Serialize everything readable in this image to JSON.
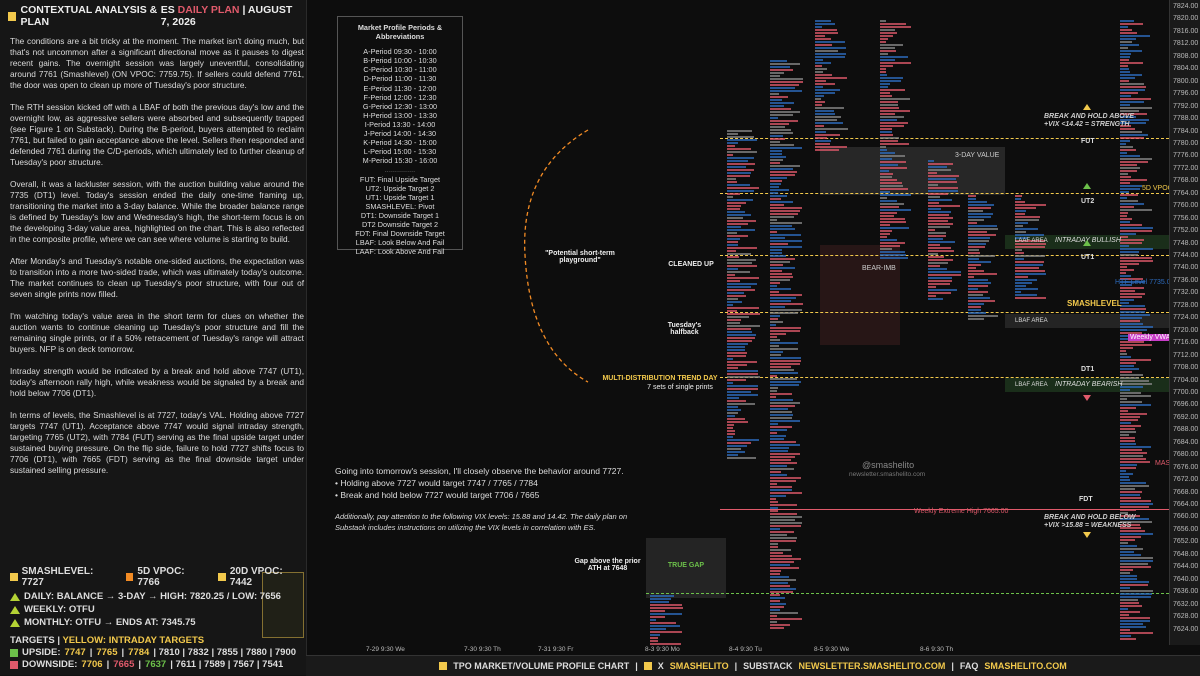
{
  "header": {
    "title": "CONTEXTUAL ANALYSIS & PLAN",
    "symbol": "ES",
    "plan": "DAILY PLAN",
    "date": "AUGUST 7, 2026"
  },
  "body": {
    "p1": "The conditions are a bit tricky at the moment. The market isn't doing much, but that's not uncommon after a significant directional move as it pauses to digest recent gains. The overnight session was largely uneventful, consolidating around 7761 (Smashlevel) (ON VPOC: 7759.75). If sellers could defend 7761, the door was open to clean up more of Tuesday's poor structure.",
    "p2": "The RTH session kicked off with a LBAF of both the previous day's low and the overnight low, as aggressive sellers were absorbed and subsequently trapped (see Figure 1 on Substack). During the B-period, buyers attempted to reclaim 7761, but failed to gain acceptance above the level. Sellers then responded and defended 7761 during the C/D-periods, which ultimately led to further cleanup of Tuesday's poor structure.",
    "p3": "Overall, it was a lackluster session, with the auction building value around the 7735 (DT1) level. Today's session ended the daily one-time framing up, transitioning the market into a 3-day balance. While the broader balance range is defined by Tuesday's low and Wednesday's high, the short-term focus is on the developing 3-day value area, highlighted on the chart. This is also reflected in the composite profile, where we can see where volume is starting to build.",
    "p4": "After Monday's and Tuesday's notable one-sided auctions, the expectation was to transition into a more two-sided trade, which was ultimately today's outcome. The market continues to clean up Tuesday's poor structure, with four out of seven single prints now filled.",
    "p5": "I'm watching today's value area in the short term for clues on whether the auction wants to continue cleaning up Tuesday's poor structure and fill the remaining single prints, or if a 50% retracement of Tuesday's range will attract buyers. NFP is on deck tomorrow.",
    "p6": "Intraday strength would be indicated by a break and hold above 7747 (UT1), today's afternoon rally high, while weakness would be signaled by a break and hold below 7706 (DT1).",
    "p7": "In terms of levels, the Smashlevel is at 7727, today's VAL. Holding above 7727 targets 7747 (UT1). Acceptance above 7747 would signal intraday strength, targeting 7765 (UT2), with 7784 (FUT) serving as the final upside target under sustained buying pressure. On the flip side, failure to hold 7727 shifts focus to 7706 (DT1), with 7665 (FDT) serving as the final downside target under sustained selling pressure."
  },
  "levels": {
    "smashlevel": "SMASHLEVEL: 7727",
    "vpoc5": "5D VPOC: 7766",
    "vpoc20": "20D VPOC: 7442"
  },
  "balance": {
    "daily": "DAILY: BALANCE → 3-DAY → HIGH: 7820.25 / LOW: 7656",
    "weekly": "WEEKLY: OTFU",
    "monthly": "MONTHLY: OTFU → ENDS AT: 7345.75"
  },
  "targets": {
    "title_a": "TARGETS",
    "title_b": "YELLOW: INTRADAY TARGETS",
    "upside_label": "UPSIDE:",
    "upside_a": "7747",
    "upside_b": "7765",
    "upside_c": "7784",
    "upside_rest": "| 7810 | 7832 | 7855 | 7880 | 7900",
    "downside_label": "DOWNSIDE:",
    "downside_a": "7706",
    "downside_b": "7665",
    "downside_c": "7637",
    "downside_rest": "| 7611 | 7589 | 7567 | 7541"
  },
  "legend": {
    "title": "Market Profile Periods & Abbreviations",
    "periods": [
      "A-Period 09:30 - 10:00",
      "B-Period 10:00 - 10:30",
      "C-Period 10:30 - 11:00",
      "D-Period 11:00 - 11:30",
      "E-Period 11:30 - 12:00",
      "F-Period 12:00 - 12:30",
      "G-Period 12:30 - 13:00",
      "H-Period 13:00 - 13:30",
      "I-Period 13:30 - 14:00",
      "J-Period 14:00 - 14:30",
      "K-Period 14:30 - 15:00",
      "L-Period 15:00 - 15:30",
      "M-Period 15:30 - 16:00"
    ],
    "sep": "...............",
    "abbr": [
      "FUT: Final Upside Target",
      "UT2: Upside Target 2",
      "UT1: Upside Target 1",
      "SMASHLEVEL: Pivot",
      "DT1: Downside Target 1",
      "DT2 Downside Target 2",
      "FDT: Final Downside Target",
      "LBAF: Look Below And Fail",
      "LAAF: Look Above And Fail"
    ]
  },
  "chart": {
    "potential": "\"Potential short-term playground\"",
    "cleaned": "CLEANED UP",
    "halfback": "Tuesday's halfback",
    "multi": "MULTI-DISTRIBUTION TREND DAY",
    "singles": "7 sets of single prints",
    "gap_above": "Gap above the prior ATH at 7648",
    "true_gap": "TRUE GAP",
    "three_day": "3-DAY VALUE",
    "bear_imb": "BEAR-IMB",
    "break_up": "BREAK AND HOLD ABOVE",
    "vix_up": "+VIX <14.42 = STRENGTH",
    "break_dn": "BREAK AND HOLD BELOW",
    "vix_dn": "+VIX >15.88 = WEAKNESS",
    "fut": "FUT",
    "ut2": "UT2",
    "ut1": "UT1",
    "smash": "SMASHLEVEL",
    "dt1": "DT1",
    "fdt": "FDT",
    "laaf": "LAAF AREA",
    "lbaf": "LBAF AREA",
    "lbaf2": "LBAF AREA",
    "intraday_bull": "INTRADAY BULLISH",
    "intraday_bear": "INTRADAY BEARISH",
    "weekly_vwap": "Weekly VWAP",
    "htf": "HTF Level 7735.00",
    "weekly_extreme": "Weekly Extreme High 7665.00",
    "vpoc_5d": "5D VPOC",
    "watermark": "@smashelito",
    "watermark2": "newsletter.smashelito.com",
    "mas": "MAS"
  },
  "note": {
    "l1": "Going into tomorrow's session, I'll closely observe the behavior around 7727.",
    "l2": "• Holding above 7727 would target 7747 / 7765 / 7784",
    "l3": "• Break and hold below 7727 would target 7706 / 7665",
    "l4": "Additionally, pay attention to the following VIX levels: 15.88 and 14.42. The daily plan on Substack includes instructions on utilizing the VIX levels in correlation with ES."
  },
  "yticks": [
    "7824.00",
    "7820.00",
    "7816.00",
    "7812.00",
    "7808.00",
    "7804.00",
    "7800.00",
    "7796.00",
    "7792.00",
    "7788.00",
    "7784.00",
    "7780.00",
    "7776.00",
    "7772.00",
    "7768.00",
    "7764.00",
    "7760.00",
    "7756.00",
    "7752.00",
    "7748.00",
    "7744.00",
    "7740.00",
    "7736.00",
    "7732.00",
    "7728.00",
    "7724.00",
    "7720.00",
    "7716.00",
    "7712.00",
    "7708.00",
    "7704.00",
    "7700.00",
    "7696.00",
    "7692.00",
    "7688.00",
    "7684.00",
    "7680.00",
    "7676.00",
    "7672.00",
    "7668.00",
    "7664.00",
    "7660.00",
    "7656.00",
    "7652.00",
    "7648.00",
    "7644.00",
    "7640.00",
    "7636.00",
    "7632.00",
    "7628.00",
    "7624.00"
  ],
  "xticks": [
    "7-29  9:30 We",
    "7-30  9:30 Th",
    "7-31  9:30 Fr",
    "8-3  9:30 Mo",
    "8-4  9:30 Tu",
    "8-5  9:30 We",
    "8-6  9:30 Th"
  ],
  "footer": {
    "a": "TPO MARKET/VOLUME PROFILE CHART",
    "b": "X",
    "c": "SMASHELITO",
    "d": "SUBSTACK",
    "e": "NEWSLETTER.SMASHELITO.COM",
    "f": "FAQ",
    "g": "SMASHELITO.COM"
  },
  "colors": {
    "yellow": "#f2c94c",
    "pink": "#e05a6b",
    "green": "#6cc04a",
    "orange": "#f28b24",
    "blue": "#2d6cbf"
  }
}
